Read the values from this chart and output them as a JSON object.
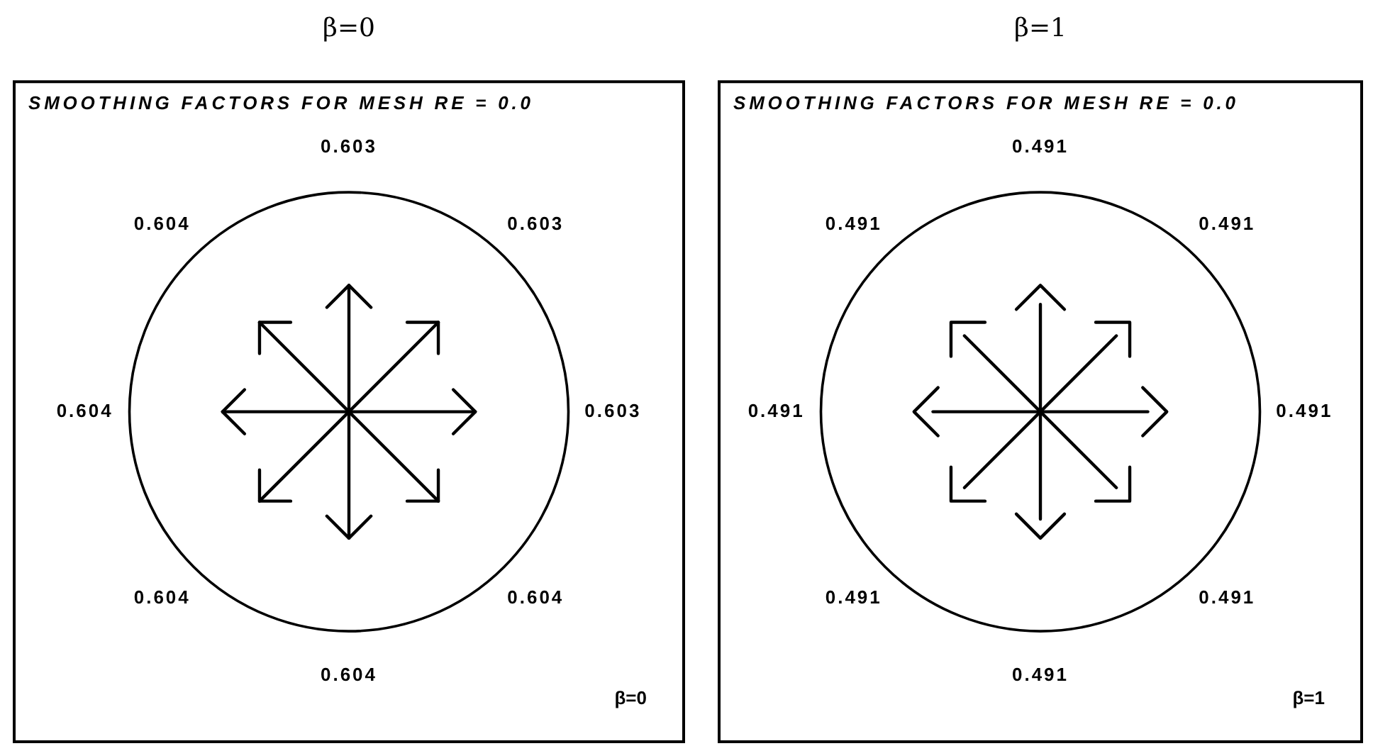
{
  "chart_data": [
    {
      "type": "other",
      "title": "β=0",
      "subtitle": "SMOOTHING FACTORS FOR MESH RE = 0.0",
      "categories": [
        null,
        null,
        null,
        null,
        null,
        null,
        null,
        null
      ],
      "values": [
        0.603,
        0.604,
        0.603,
        0.604,
        0.603,
        0.604,
        0.604,
        0.604
      ],
      "data_labels": true,
      "annotations": [
        "β=0"
      ]
    },
    {
      "type": "other",
      "title": "β=1",
      "subtitle": "SMOOTHING FACTORS FOR MESH RE = 0.0",
      "categories": [
        null,
        null,
        null,
        null,
        null,
        null,
        null,
        null
      ],
      "values": [
        0.491,
        0.491,
        0.491,
        0.491,
        0.491,
        0.491,
        0.491,
        0.491
      ],
      "data_labels": true,
      "annotations": [
        "β=1"
      ]
    }
  ]
}
